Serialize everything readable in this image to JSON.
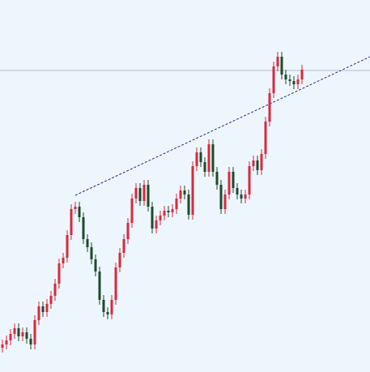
{
  "chart_data": {
    "type": "candlestick",
    "up_color": "#d8293f",
    "down_color": "#1d4a2c",
    "xlim": [
      -0.6,
      90.8
    ],
    "ylim": [
      0,
      459
    ],
    "open": [
      30,
      34,
      39,
      47,
      54,
      44,
      49,
      41,
      34,
      64,
      81,
      74,
      84,
      94,
      109,
      134,
      141,
      169,
      201,
      204,
      191,
      164,
      154,
      139,
      124,
      89,
      74,
      71,
      89,
      129,
      147,
      164,
      184,
      214,
      227,
      211,
      231,
      204,
      177,
      187,
      193,
      199,
      197,
      201,
      214,
      224,
      219,
      194,
      254,
      271,
      259,
      247,
      281,
      247,
      231,
      201,
      219,
      247,
      227,
      219,
      214,
      219,
      254,
      261,
      249,
      269,
      309,
      344,
      377,
      389,
      367,
      361,
      359,
      355,
      361
    ],
    "high": [
      40,
      45,
      53,
      60,
      60,
      55,
      55,
      47,
      70,
      87,
      87,
      90,
      100,
      115,
      140,
      147,
      175,
      207,
      210,
      210,
      197,
      170,
      160,
      145,
      130,
      95,
      80,
      95,
      135,
      153,
      170,
      190,
      220,
      233,
      233,
      237,
      237,
      210,
      193,
      199,
      205,
      205,
      207,
      220,
      230,
      230,
      225,
      260,
      277,
      277,
      265,
      287,
      287,
      253,
      237,
      225,
      253,
      253,
      233,
      225,
      225,
      260,
      267,
      267,
      275,
      315,
      350,
      383,
      395,
      395,
      373,
      367,
      365,
      367,
      379
    ],
    "low": [
      24,
      28,
      33,
      41,
      38,
      38,
      35,
      28,
      28,
      58,
      68,
      68,
      78,
      88,
      103,
      128,
      135,
      163,
      195,
      185,
      158,
      148,
      133,
      118,
      83,
      68,
      65,
      65,
      83,
      123,
      141,
      158,
      178,
      208,
      205,
      205,
      198,
      171,
      171,
      181,
      187,
      191,
      191,
      195,
      208,
      213,
      188,
      188,
      248,
      253,
      241,
      241,
      241,
      225,
      195,
      195,
      213,
      221,
      213,
      208,
      208,
      213,
      248,
      243,
      243,
      263,
      303,
      338,
      371,
      361,
      355,
      353,
      349,
      349,
      355
    ],
    "close": [
      34,
      39,
      47,
      54,
      44,
      49,
      41,
      34,
      64,
      81,
      74,
      84,
      94,
      109,
      134,
      141,
      169,
      201,
      204,
      191,
      164,
      154,
      139,
      124,
      89,
      74,
      71,
      89,
      129,
      147,
      164,
      184,
      214,
      227,
      211,
      231,
      204,
      177,
      187,
      193,
      199,
      197,
      201,
      214,
      224,
      219,
      194,
      254,
      271,
      259,
      247,
      281,
      247,
      231,
      201,
      219,
      247,
      227,
      219,
      214,
      219,
      254,
      261,
      249,
      269,
      309,
      344,
      377,
      389,
      367,
      361,
      359,
      355,
      361,
      373
    ],
    "hline": {
      "value": 372,
      "color": "#b4bcc6"
    },
    "trendline": {
      "x": [
        18,
        90.8
      ],
      "y": [
        218,
        389
      ],
      "color": "#1a2f80"
    }
  }
}
